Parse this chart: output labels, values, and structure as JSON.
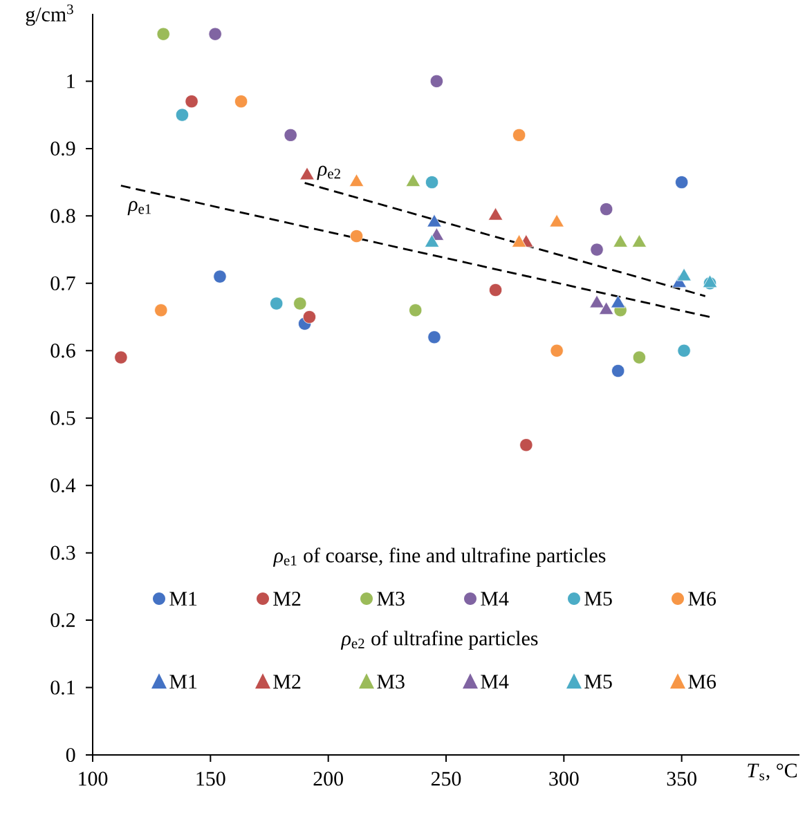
{
  "chart_data": {
    "type": "scatter",
    "xlabel": "*T*$_{s}$, °C",
    "ylabel": "g/cm$^{3}$",
    "xlim": [
      100,
      400
    ],
    "ylim": [
      0,
      1.1
    ],
    "xticks": [
      100,
      150,
      200,
      250,
      300,
      350
    ],
    "yticks": [
      0,
      0.1,
      0.2,
      0.3,
      0.4,
      0.5,
      0.6,
      0.7,
      0.8,
      0.9,
      1
    ],
    "grid": false,
    "legend": "bottom",
    "annotations": [
      "*ρ*$_{e1}$ of coarse, fine and ultrafine particles",
      "*ρ*$_{e2}$ of ultrafine particles"
    ],
    "series": [
      {
        "name": "M1",
        "color": "#4472c4",
        "marker": "circle",
        "x": [
          154,
          190,
          245,
          323,
          350
        ],
        "values": [
          0.71,
          0.64,
          0.62,
          0.57,
          0.85
        ]
      },
      {
        "name": "M2",
        "color": "#c0504d",
        "marker": "circle",
        "x": [
          112,
          142,
          192,
          271,
          284
        ],
        "values": [
          0.59,
          0.97,
          0.65,
          0.69,
          0.46
        ]
      },
      {
        "name": "M3",
        "color": "#9bbb59",
        "marker": "circle",
        "x": [
          130,
          188,
          237,
          324,
          332
        ],
        "values": [
          1.07,
          0.67,
          0.66,
          0.66,
          0.59
        ]
      },
      {
        "name": "M4",
        "color": "#8064a2",
        "marker": "circle",
        "x": [
          152,
          184,
          246,
          314,
          318
        ],
        "values": [
          1.07,
          0.92,
          1.0,
          0.75,
          0.81
        ]
      },
      {
        "name": "M5",
        "color": "#4bacc6",
        "marker": "circle",
        "x": [
          138,
          178,
          244,
          351,
          362
        ],
        "values": [
          0.95,
          0.67,
          0.85,
          0.6,
          0.7
        ]
      },
      {
        "name": "M6",
        "color": "#f79646",
        "marker": "circle",
        "x": [
          129,
          163,
          212,
          281,
          297
        ],
        "values": [
          0.66,
          0.97,
          0.77,
          0.92,
          0.6
        ]
      },
      {
        "name": "M1",
        "color": "#4472c4",
        "marker": "triangle",
        "x": [
          245,
          323,
          349
        ],
        "values": [
          0.79,
          0.67,
          0.7
        ]
      },
      {
        "name": "M2",
        "color": "#c0504d",
        "marker": "triangle",
        "x": [
          191,
          271,
          284
        ],
        "values": [
          0.86,
          0.8,
          0.76
        ]
      },
      {
        "name": "M3",
        "color": "#9bbb59",
        "marker": "triangle",
        "x": [
          236,
          324,
          332
        ],
        "values": [
          0.85,
          0.76,
          0.76
        ]
      },
      {
        "name": "M4",
        "color": "#8064a2",
        "marker": "triangle",
        "x": [
          246,
          314,
          318
        ],
        "values": [
          0.77,
          0.67,
          0.66
        ]
      },
      {
        "name": "M5",
        "color": "#4bacc6",
        "marker": "triangle",
        "x": [
          244,
          351,
          362
        ],
        "values": [
          0.76,
          0.71,
          0.7
        ]
      },
      {
        "name": "M6",
        "color": "#f79646",
        "marker": "triangle",
        "x": [
          212,
          281,
          297
        ],
        "values": [
          0.85,
          0.76,
          0.79
        ]
      },
      {
        "type": "line",
        "name": "*ρ*$_{e1}$",
        "color": "#000000",
        "line_style": "dashed",
        "marker": "none",
        "x": [
          112,
          362
        ],
        "values": [
          0.845,
          0.65
        ]
      },
      {
        "type": "line",
        "name": "*ρ*$_{e2}$",
        "color": "#000000",
        "line_style": "dashed",
        "marker": "none",
        "x": [
          190,
          360
        ],
        "values": [
          0.849,
          0.681
        ]
      }
    ]
  }
}
